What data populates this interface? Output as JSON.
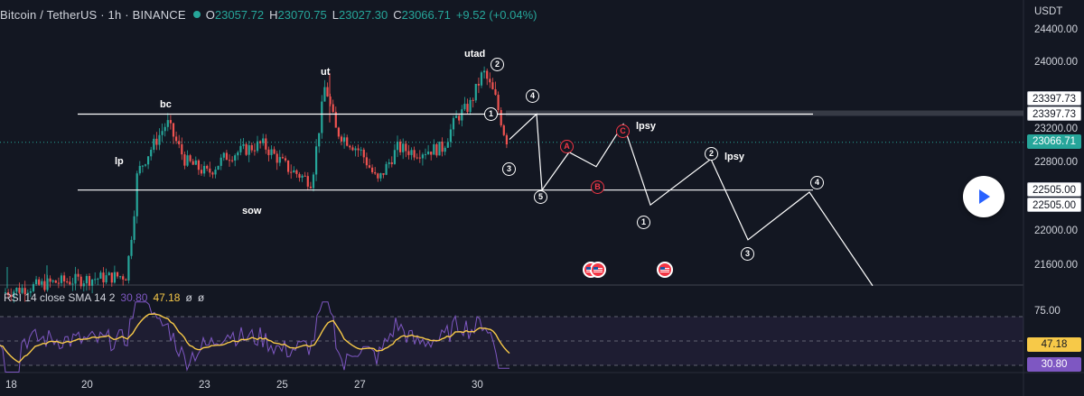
{
  "header": {
    "symbol": "Bitcoin / TetherUS · 1h · BINANCE",
    "open_key": "O",
    "open": "23057.72",
    "high_key": "H",
    "high": "23070.75",
    "low_key": "L",
    "low": "23027.30",
    "close_key": "C",
    "close": "23066.71",
    "change": "+9.52 (+0.04%)"
  },
  "price_axis": {
    "currency": "USDT",
    "ticks": [
      "24400.00",
      "24000.00",
      "23200.00",
      "22800.00",
      "22000.00",
      "21600.00"
    ],
    "ticks_values": [
      24400,
      24000,
      23200,
      22800,
      22000,
      21600
    ],
    "tags": [
      {
        "name": "resistance-level-tag-a",
        "text": "23397.73",
        "value": 23397.73,
        "style": "white"
      },
      {
        "name": "resistance-level-tag-b",
        "text": "23397.73",
        "value": 23397.73,
        "style": "white"
      },
      {
        "name": "last-price-tag",
        "text": "23066.71",
        "value": 23066.71,
        "style": "green"
      },
      {
        "name": "support-level-tag-a",
        "text": "22505.00",
        "value": 22505.0,
        "style": "white"
      },
      {
        "name": "support-level-tag-b",
        "text": "22505.00",
        "value": 22505.0,
        "style": "white"
      }
    ]
  },
  "time_axis": {
    "labels": [
      "18",
      "20",
      "23",
      "25",
      "27",
      "30"
    ]
  },
  "annotations": {
    "labels": [
      "lp",
      "bc",
      "sow",
      "ut",
      "utad",
      "lpsy",
      "lpsy"
    ],
    "circles": [
      "2",
      "4",
      "1",
      "3",
      "5",
      "A",
      "B",
      "C",
      "1",
      "2",
      "3",
      "4"
    ]
  },
  "rsi": {
    "title": "RSI 14 close SMA 14 2",
    "rsi_value": "30.80",
    "sma_value": "47.18",
    "extra1": "ø",
    "extra2": "ø",
    "ticks": [
      "75.00"
    ],
    "tag_sma": "47.18",
    "tag_rsi": "30.80"
  },
  "colors": {
    "background": "#131722",
    "up": "#26a69a",
    "down": "#ef5350",
    "rsi_line": "#7e57c2",
    "sma_line": "#f7c948",
    "annotation": "#ffffff",
    "annotation_red": "#f23645"
  },
  "chart_data": {
    "type": "candlestick",
    "title": "Bitcoin / TetherUS · 1h · BINANCE",
    "x": [
      "18",
      "20",
      "23",
      "25",
      "27",
      "30"
    ],
    "ylabel": "USDT",
    "ylim": [
      21400,
      24600
    ],
    "levels": [
      23397.73,
      22505.0
    ],
    "last_close": 23066.71,
    "projection_path": [
      [
        23120,
        23100
      ],
      [
        23397.73
      ],
      [
        22505
      ],
      [
        22950
      ],
      [
        22780
      ],
      [
        23280
      ],
      [
        22330
      ],
      [
        22870
      ],
      [
        21920
      ],
      [
        22480
      ],
      [
        21380
      ]
    ],
    "rsi": {
      "value": 30.8,
      "sma": 47.18,
      "levels": [
        70,
        50,
        30
      ]
    }
  }
}
